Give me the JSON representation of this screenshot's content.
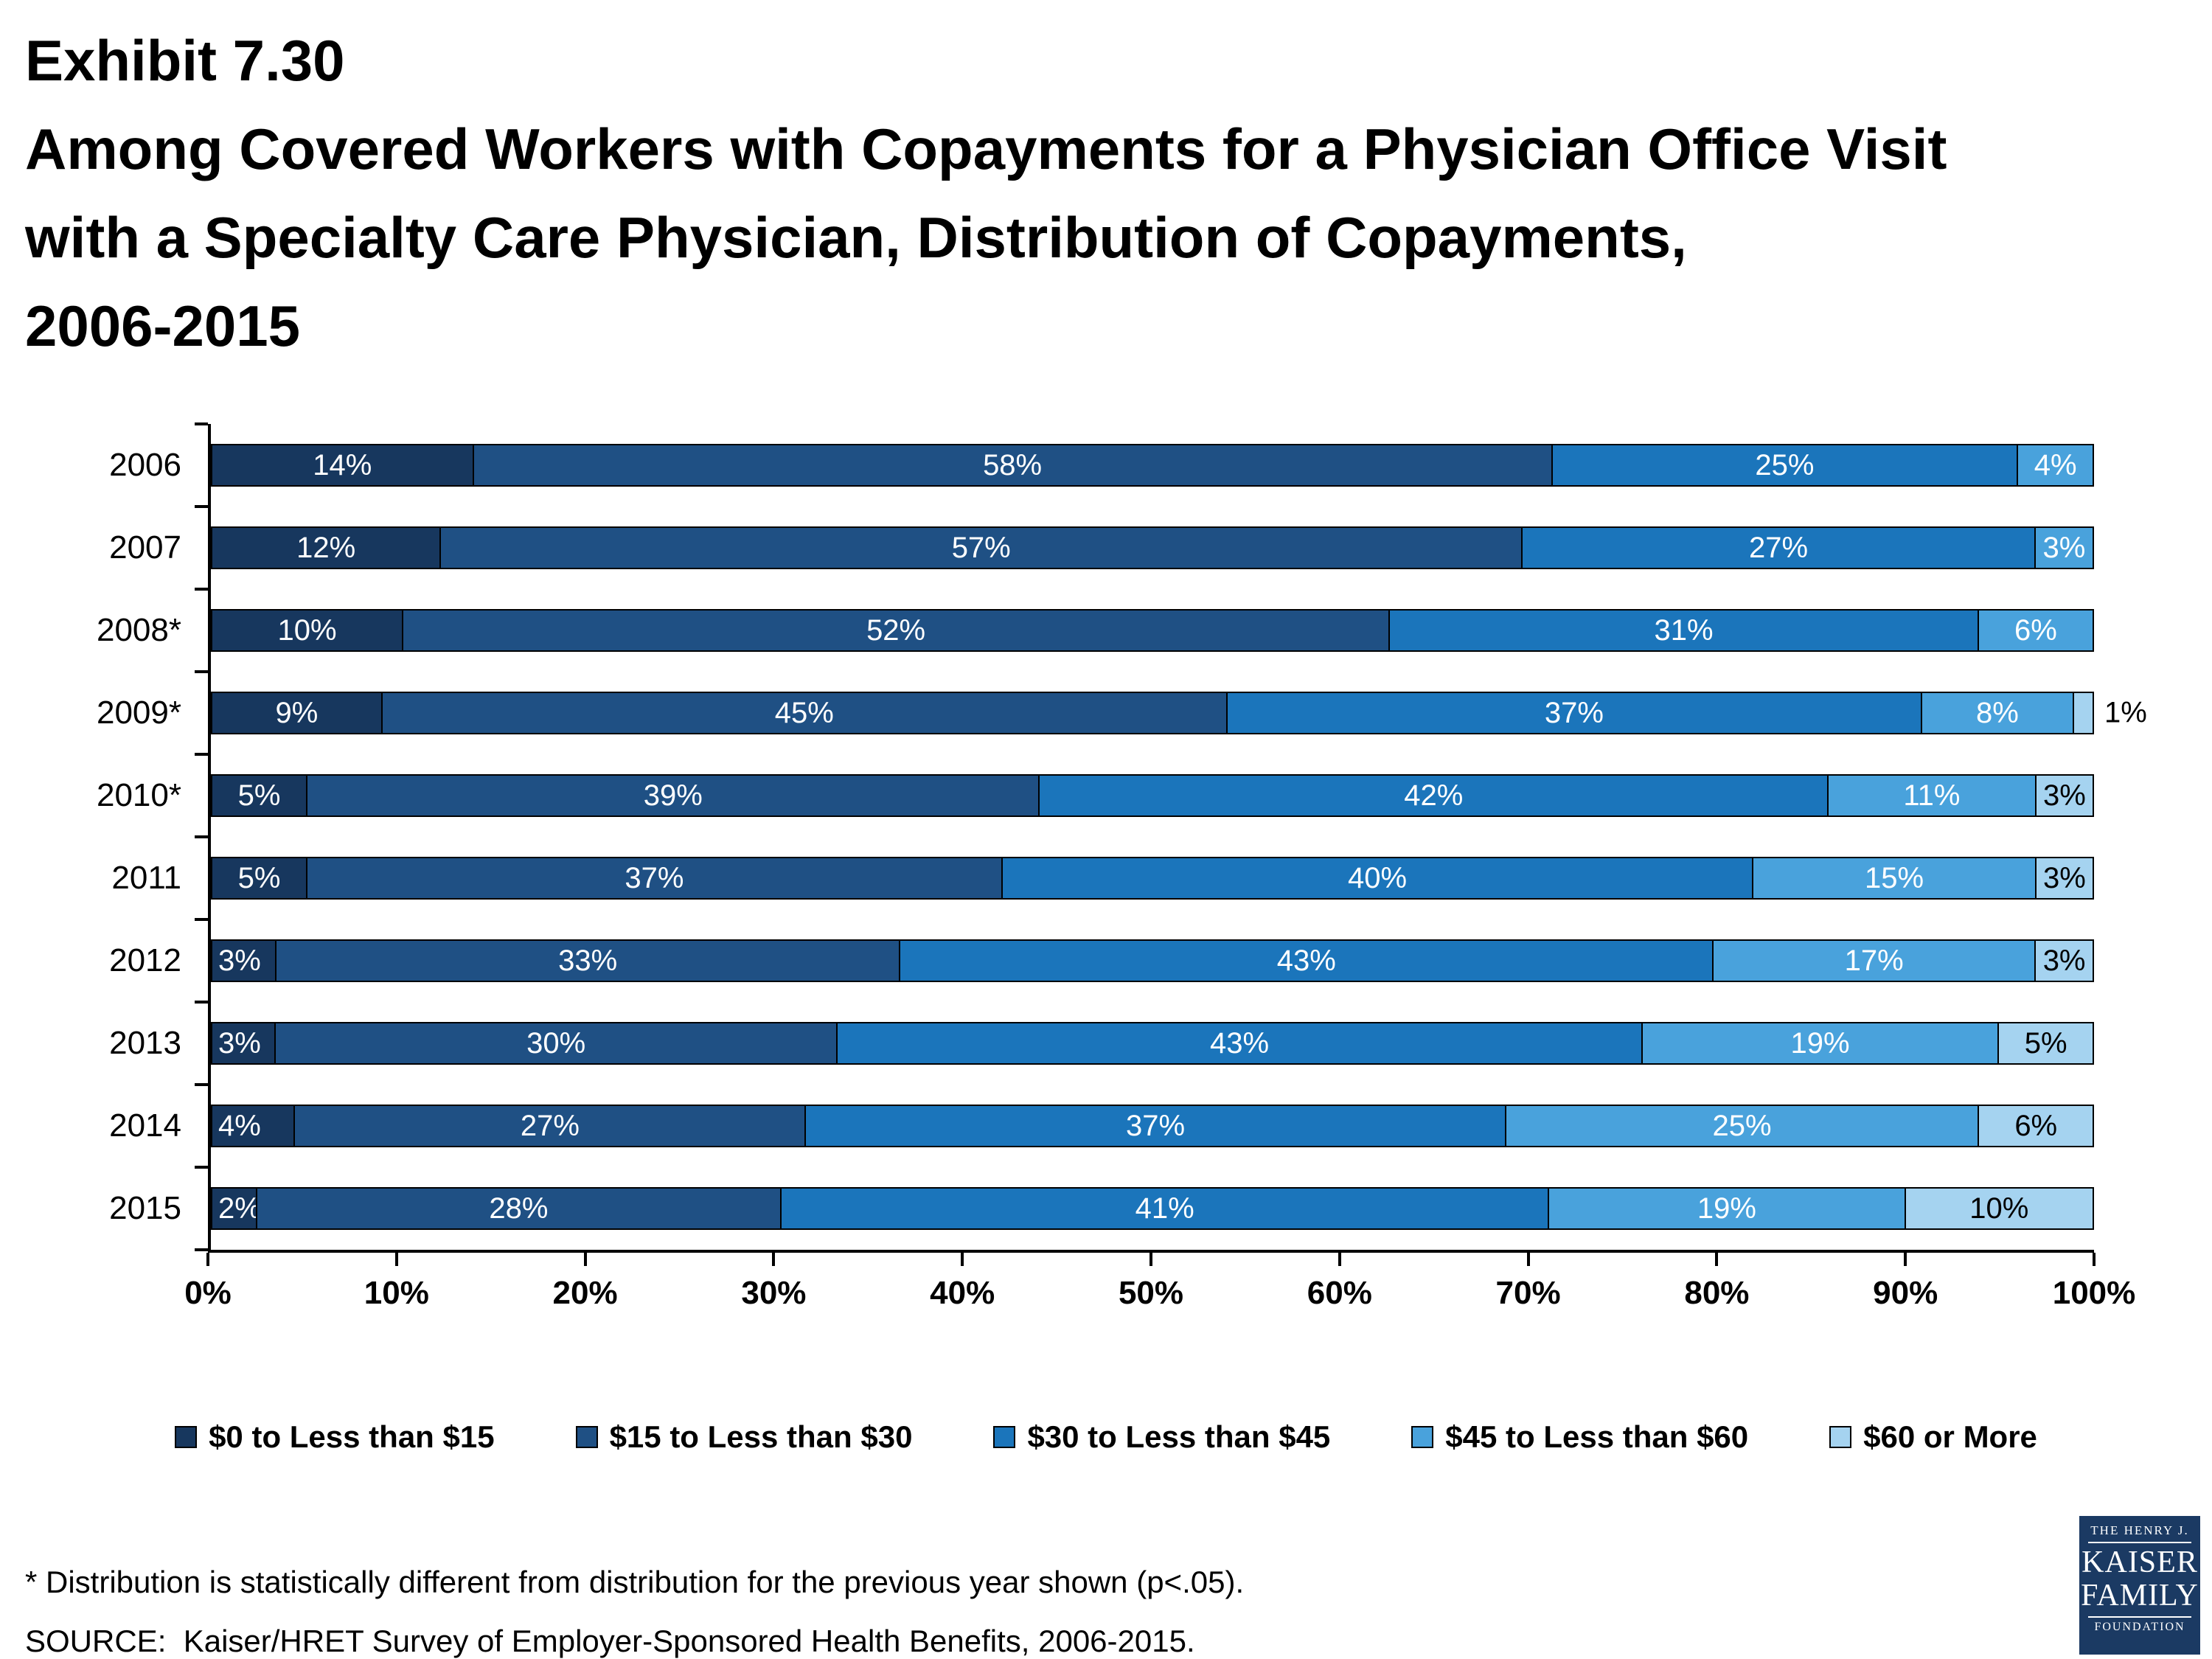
{
  "title": {
    "line1": "Exhibit 7.30",
    "line2": "Among Covered Workers with Copayments for a Physician Office Visit",
    "line3": "with a Specialty Care Physician, Distribution of Copayments,",
    "line4": "2006-2015"
  },
  "footnotes": {
    "asterisk": "* Distribution is statistically different from distribution for the previous year shown (p<.05).",
    "source": "SOURCE:  Kaiser/HRET Survey of Employer-Sponsored Health Benefits, 2006-2015."
  },
  "logo": {
    "line1": "THE HENRY J.",
    "line2": "KAISER",
    "line3": "FAMILY",
    "line4": "FOUNDATION"
  },
  "chart_data": {
    "type": "bar",
    "stacked": true,
    "orientation": "horizontal",
    "title": "Exhibit 7.30 — Among Covered Workers with Copayments for a Physician Office Visit with a Specialty Care Physician, Distribution of Copayments, 2006-2015",
    "categories": [
      "2006",
      "2007",
      "2008*",
      "2009*",
      "2010*",
      "2011",
      "2012",
      "2013",
      "2014",
      "2015"
    ],
    "series": [
      {
        "name": "$0 to Less than $15",
        "color": "#17375E",
        "values": [
          14,
          12,
          10,
          9,
          5,
          5,
          3,
          3,
          4,
          2
        ]
      },
      {
        "name": "$15 to Less than $30",
        "color": "#1F5084",
        "values": [
          58,
          57,
          52,
          45,
          39,
          37,
          33,
          30,
          27,
          28
        ]
      },
      {
        "name": "$30 to Less than $45",
        "color": "#1B75BB",
        "values": [
          25,
          27,
          31,
          37,
          42,
          40,
          43,
          43,
          37,
          41
        ]
      },
      {
        "name": "$45 to Less than $60",
        "color": "#49A2DC",
        "values": [
          4,
          3,
          6,
          8,
          11,
          15,
          17,
          19,
          25,
          19
        ]
      },
      {
        "name": "$60 or More",
        "color": "#A5D3F0",
        "values": [
          0,
          0,
          0,
          1,
          3,
          3,
          3,
          5,
          6,
          10
        ]
      }
    ],
    "label_colors": [
      "#ffffff",
      "#ffffff",
      "#ffffff",
      "#ffffff",
      "#000000"
    ],
    "x_ticks": [
      "0%",
      "10%",
      "20%",
      "30%",
      "40%",
      "50%",
      "60%",
      "70%",
      "80%",
      "90%",
      "100%"
    ],
    "xlim": [
      0,
      100
    ],
    "grid": false,
    "legend_position": "bottom"
  }
}
